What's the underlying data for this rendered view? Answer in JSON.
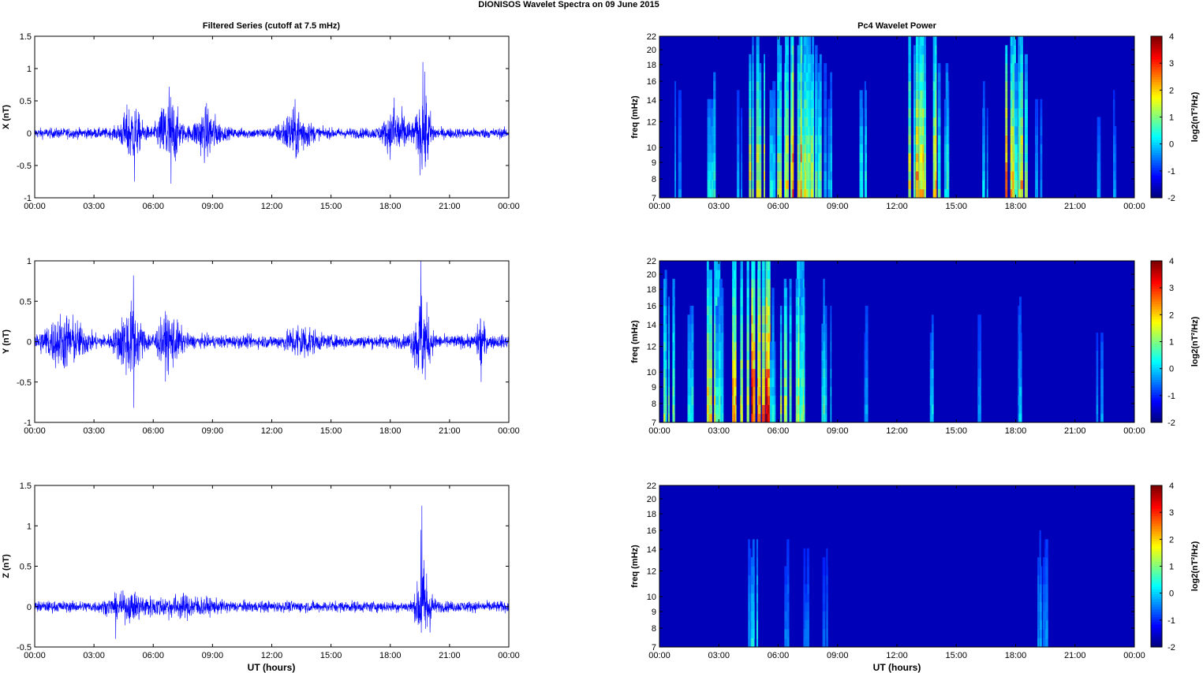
{
  "figure": {
    "title": "DIONISOS Wavelet Spectra on 09 June      2015",
    "left_title": "Filtered Series (cutoff at 7.5 mHz)",
    "right_title": "Pc4 Wavelet Power",
    "xlabel": "UT (hours)"
  },
  "colors": {
    "trace": "#0000ff",
    "axis": "#000000",
    "background": "#ffffff"
  },
  "chart_data": [
    {
      "type": "line",
      "panel": "X",
      "ylabel": "X (nT)",
      "ylim": [
        -1,
        1.5
      ],
      "yticks": [
        "-1",
        "-0.5",
        "0",
        "0.5",
        "1",
        "1.5"
      ],
      "xticks": [
        "00:00",
        "03:00",
        "06:00",
        "09:00",
        "12:00",
        "15:00",
        "18:00",
        "21:00",
        "00:00"
      ],
      "xlim_hours": [
        0,
        24
      ],
      "baseline_amp": 0.07,
      "bursts": [
        {
          "t": 4.9,
          "w": 0.5,
          "a": 0.35
        },
        {
          "t": 6.8,
          "w": 0.5,
          "a": 0.5
        },
        {
          "t": 8.7,
          "w": 0.6,
          "a": 0.3
        },
        {
          "t": 13.2,
          "w": 0.7,
          "a": 0.3
        },
        {
          "t": 18.3,
          "w": 0.6,
          "a": 0.3
        },
        {
          "t": 19.7,
          "w": 0.35,
          "a": 0.55
        }
      ],
      "peaks": [
        {
          "t": 19.65,
          "v": 1.1
        },
        {
          "t": 6.8,
          "v": 0.72
        },
        {
          "t": 6.9,
          "v": -0.78
        },
        {
          "t": 5.05,
          "v": -0.75
        },
        {
          "t": 18.2,
          "v": 0.55
        }
      ]
    },
    {
      "type": "line",
      "panel": "Y",
      "ylabel": "Y (nT)",
      "ylim": [
        -1,
        1
      ],
      "yticks": [
        "-1",
        "-0.5",
        "0",
        "0.5",
        "1"
      ],
      "xticks": [
        "00:00",
        "03:00",
        "06:00",
        "09:00",
        "12:00",
        "15:00",
        "18:00",
        "21:00",
        "00:00"
      ],
      "xlim_hours": [
        0,
        24
      ],
      "baseline_amp": 0.07,
      "bursts": [
        {
          "t": 1.5,
          "w": 1.0,
          "a": 0.25
        },
        {
          "t": 4.8,
          "w": 0.6,
          "a": 0.35
        },
        {
          "t": 6.8,
          "w": 0.6,
          "a": 0.25
        },
        {
          "t": 13.5,
          "w": 0.7,
          "a": 0.15
        },
        {
          "t": 19.6,
          "w": 0.4,
          "a": 0.45
        },
        {
          "t": 22.6,
          "w": 0.2,
          "a": 0.25
        }
      ],
      "peaks": [
        {
          "t": 5.0,
          "v": 0.82
        },
        {
          "t": 5.02,
          "v": -0.82
        },
        {
          "t": 19.55,
          "v": 1.0
        },
        {
          "t": 22.6,
          "v": -0.5
        }
      ]
    },
    {
      "type": "line",
      "panel": "Z",
      "ylabel": "Z (nT)",
      "ylim": [
        -0.5,
        1.5
      ],
      "yticks": [
        "-0.5",
        "0",
        "0.5",
        "1",
        "1.5"
      ],
      "xticks": [
        "00:00",
        "03:00",
        "06:00",
        "09:00",
        "12:00",
        "15:00",
        "18:00",
        "21:00",
        "00:00"
      ],
      "xlim_hours": [
        0,
        24
      ],
      "baseline_amp": 0.06,
      "bursts": [
        {
          "t": 4.8,
          "w": 1.0,
          "a": 0.1
        },
        {
          "t": 7.5,
          "w": 1.5,
          "a": 0.08
        },
        {
          "t": 19.7,
          "w": 0.35,
          "a": 0.45
        }
      ],
      "peaks": [
        {
          "t": 19.6,
          "v": 1.25
        },
        {
          "t": 19.55,
          "v": 0.95
        },
        {
          "t": 4.1,
          "v": -0.4
        }
      ]
    },
    {
      "type": "heatmap",
      "panel": "X",
      "ylabel": "freq (mHz)",
      "freq_range": [
        7,
        22
      ],
      "yticks": [
        "7",
        "8",
        "9",
        "10",
        "12",
        "14",
        "16",
        "18",
        "20",
        "22"
      ],
      "xticks": [
        "00:00",
        "03:00",
        "06:00",
        "09:00",
        "12:00",
        "15:00",
        "18:00",
        "21:00",
        "00:00"
      ],
      "colorbar": {
        "label": "log2(nT²/Hz)",
        "range": [
          -2,
          4
        ],
        "ticks": [
          "-2",
          "-1",
          "0",
          "1",
          "2",
          "3",
          "4"
        ]
      },
      "activity": [
        {
          "t": 0.9,
          "a": 0.4
        },
        {
          "t": 2.6,
          "a": 0.8
        },
        {
          "t": 4.0,
          "a": 0.45
        },
        {
          "t": 4.9,
          "a": 1.6
        },
        {
          "t": 5.6,
          "a": 0.9
        },
        {
          "t": 6.4,
          "a": 1.5
        },
        {
          "t": 6.7,
          "a": 2.2
        },
        {
          "t": 7.1,
          "a": 1.9
        },
        {
          "t": 7.4,
          "a": 1.5
        },
        {
          "t": 8.1,
          "a": 1.1
        },
        {
          "t": 8.5,
          "a": 0.7
        },
        {
          "t": 10.2,
          "a": 0.8
        },
        {
          "t": 12.9,
          "a": 1.7
        },
        {
          "t": 13.6,
          "a": 1.8
        },
        {
          "t": 14.4,
          "a": 0.9
        },
        {
          "t": 16.5,
          "a": 0.7
        },
        {
          "t": 17.9,
          "a": 1.9
        },
        {
          "t": 18.3,
          "a": 1.2
        },
        {
          "t": 19.2,
          "a": 0.45
        },
        {
          "t": 22.3,
          "a": 0.4
        },
        {
          "t": 22.9,
          "a": 0.35
        }
      ]
    },
    {
      "type": "heatmap",
      "panel": "Y",
      "ylabel": "freq (mHz)",
      "freq_range": [
        7,
        22
      ],
      "yticks": [
        "7",
        "8",
        "9",
        "10",
        "12",
        "14",
        "16",
        "18",
        "20",
        "22"
      ],
      "xticks": [
        "00:00",
        "03:00",
        "06:00",
        "09:00",
        "12:00",
        "15:00",
        "18:00",
        "21:00",
        "00:00"
      ],
      "colorbar": {
        "label": "log2(nT²/Hz)",
        "range": [
          -2,
          4
        ],
        "ticks": [
          "-2",
          "-1",
          "0",
          "1",
          "2",
          "3",
          "4"
        ]
      },
      "activity": [
        {
          "t": 0.6,
          "a": 1.3
        },
        {
          "t": 1.5,
          "a": 0.8
        },
        {
          "t": 2.6,
          "a": 1.8
        },
        {
          "t": 3.2,
          "a": 1.0
        },
        {
          "t": 4.2,
          "a": 2.0
        },
        {
          "t": 4.6,
          "a": 1.9
        },
        {
          "t": 5.0,
          "a": 2.5
        },
        {
          "t": 5.9,
          "a": 0.7
        },
        {
          "t": 6.5,
          "a": 1.3
        },
        {
          "t": 6.9,
          "a": 1.6
        },
        {
          "t": 7.2,
          "a": 1.2
        },
        {
          "t": 8.4,
          "a": 0.9
        },
        {
          "t": 10.3,
          "a": 0.4
        },
        {
          "t": 13.6,
          "a": 0.6
        },
        {
          "t": 16.2,
          "a": 0.45
        },
        {
          "t": 18.2,
          "a": 0.6
        },
        {
          "t": 22.3,
          "a": 0.4
        }
      ]
    },
    {
      "type": "heatmap",
      "panel": "Z",
      "ylabel": "freq (mHz)",
      "freq_range": [
        7,
        22
      ],
      "yticks": [
        "7",
        "8",
        "9",
        "10",
        "12",
        "14",
        "16",
        "18",
        "20",
        "22"
      ],
      "xticks": [
        "00:00",
        "03:00",
        "06:00",
        "09:00",
        "12:00",
        "15:00",
        "18:00",
        "21:00",
        "00:00"
      ],
      "colorbar": {
        "label": "log2(nT²/Hz)",
        "range": [
          -2,
          4
        ],
        "ticks": [
          "-2",
          "-1",
          "0",
          "1",
          "2",
          "3",
          "4"
        ]
      },
      "activity": [
        {
          "t": 4.5,
          "a": 0.45
        },
        {
          "t": 4.9,
          "a": 0.7
        },
        {
          "t": 6.5,
          "a": 0.3
        },
        {
          "t": 7.4,
          "a": 0.25
        },
        {
          "t": 8.4,
          "a": 0.25
        },
        {
          "t": 19.2,
          "a": 0.5
        },
        {
          "t": 19.5,
          "a": 0.35
        }
      ]
    }
  ]
}
